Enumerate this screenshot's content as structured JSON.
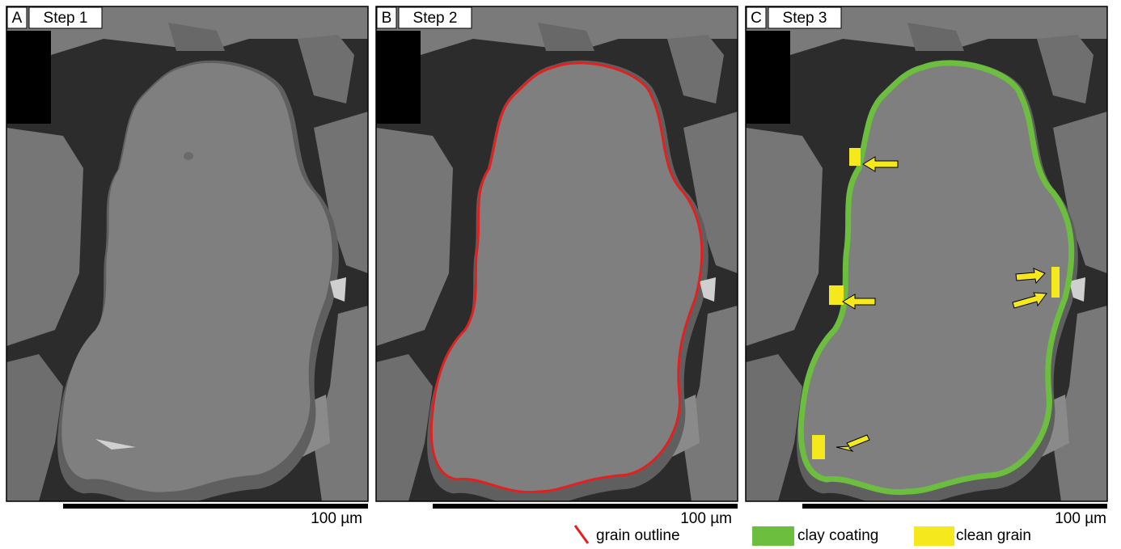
{
  "panels": [
    {
      "letter": "A",
      "title": "Step 1",
      "scale": "100 µm"
    },
    {
      "letter": "B",
      "title": "Step 2",
      "scale": "100 µm"
    },
    {
      "letter": "C",
      "title": "Step 3",
      "scale": "100 µm"
    }
  ],
  "legend": {
    "outline": "grain outline",
    "coating": "clay coating",
    "clean": "clean grain"
  }
}
